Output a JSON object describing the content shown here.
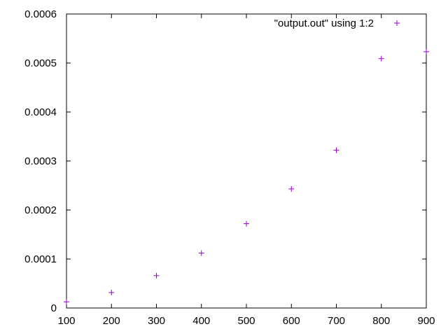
{
  "chart_data": {
    "type": "scatter",
    "title": "",
    "xlabel": "",
    "ylabel": "",
    "xlim": [
      100,
      900
    ],
    "ylim": [
      0,
      0.0006
    ],
    "grid": false,
    "legend_position": "top-right",
    "x_ticks": [
      "100",
      "200",
      "300",
      "400",
      "500",
      "600",
      "700",
      "800",
      "900"
    ],
    "y_ticks": [
      "0",
      "0.0001",
      "0.0002",
      "0.0003",
      "0.0004",
      "0.0005",
      "0.0006"
    ],
    "series": [
      {
        "name": "\"output.out\" using 1:2",
        "color": "#9400d3",
        "marker": "plus",
        "x": [
          100,
          200,
          300,
          400,
          500,
          600,
          700,
          800,
          900
        ],
        "y": [
          1.25e-05,
          3.15e-05,
          6.6e-05,
          0.000112,
          0.000172,
          0.000243,
          0.000322,
          0.000509,
          0.000523
        ]
      }
    ]
  }
}
